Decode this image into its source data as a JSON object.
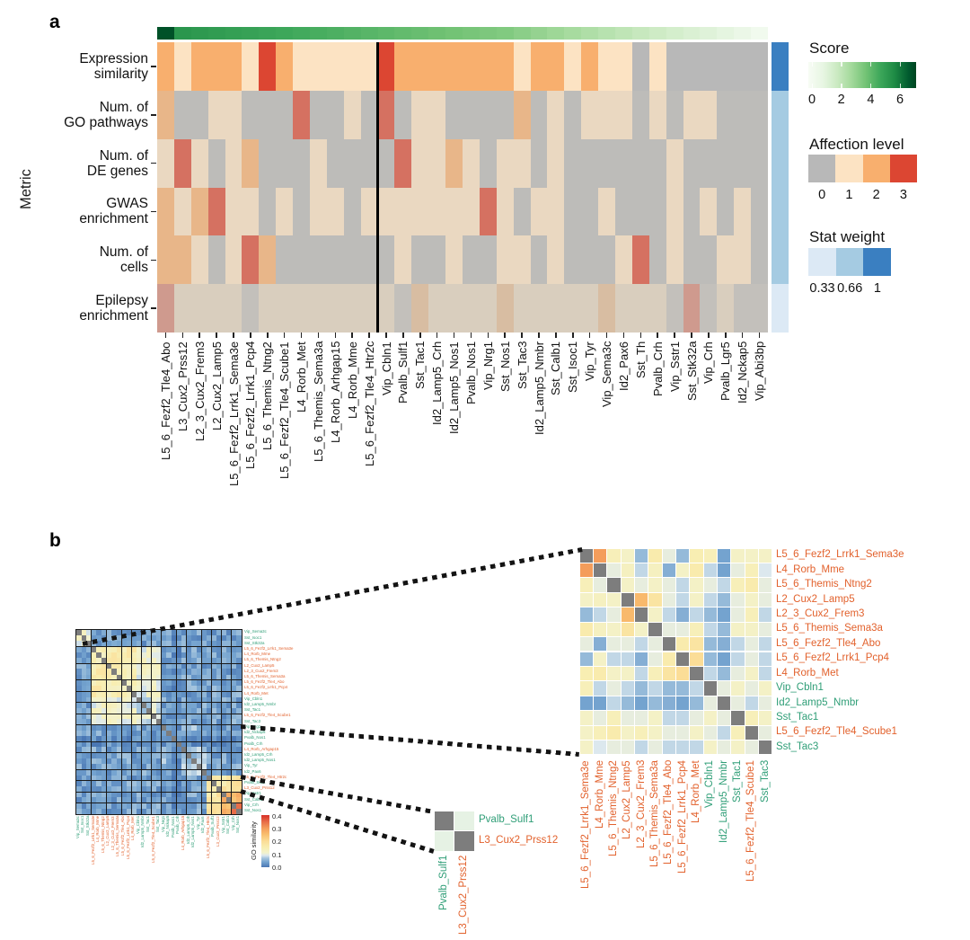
{
  "panel_a": {
    "label": "a"
  },
  "panel_b": {
    "label": "b"
  },
  "group_colors": {
    "exc": "#e2612c",
    "inh": "#2f9e77"
  },
  "chart_data": [
    {
      "id": "panel_a_metric_heatmap",
      "type": "heatmap",
      "ylabel": "Metric",
      "x_categories": [
        "L5_6_Fezf2_Tle4_Abo",
        "L3_Cux2_Prss12",
        "L2_3_Cux2_Frem3",
        "L2_Cux2_Lamp5",
        "L5_6_Fezf2_Lrrk1_Sema3e",
        "L5_6_Fezf2_Lrrk1_Pcp4",
        "L5_6_Themis_Ntng2",
        "L5_6_Fezf2_Tle4_Scube1",
        "L4_Rorb_Met",
        "L5_6_Themis_Sema3a",
        "L4_Rorb_Arhgap15",
        "L4_Rorb_Mme",
        "L5_6_Fezf2_Tle4_Htr2c",
        "Vip_Cbln1",
        "Pvalb_Sulf1",
        "Sst_Tac1",
        "Id2_Lamp5_Crh",
        "Id2_Lamp5_Nos1",
        "Pvalb_Nos1",
        "Vip_Nrg1",
        "Sst_Nos1",
        "Sst_Tac3",
        "Id2_Lamp5_Nmbr",
        "Sst_Calb1",
        "Sst_Isoc1",
        "Vip_Tyr",
        "Vip_Sema3c",
        "Id2_Pax6",
        "Sst_Th",
        "Pvalb_Crh",
        "Vip_Sstr1",
        "Sst_Stk32a",
        "Vip_Crh",
        "Pvalb_Lgr5",
        "Id2_Nckap5",
        "Vip_Abi3bp"
      ],
      "y_categories": [
        "Expression similarity",
        "Num. of GO pathways",
        "Num. of DE genes",
        "GWAS enrichment",
        "Num. of cells",
        "Epilepsy enrichment"
      ],
      "y_categories_lines": [
        [
          "Expression",
          "similarity"
        ],
        [
          "Num. of",
          "GO pathways"
        ],
        [
          "Num. of",
          "DE genes"
        ],
        [
          "GWAS",
          "enrichment"
        ],
        [
          "Num. of",
          "cells"
        ],
        [
          "Epilepsy",
          "enrichment"
        ]
      ],
      "affection_values": [
        [
          2,
          1,
          2,
          2,
          2,
          1,
          3,
          2,
          1,
          1,
          1,
          1,
          1,
          3,
          2,
          2,
          2,
          2,
          2,
          2,
          2,
          1,
          2,
          2,
          1,
          2,
          1,
          1,
          0,
          1,
          0,
          0,
          0,
          0,
          0,
          0
        ],
        [
          2,
          0,
          0,
          1,
          1,
          0,
          0,
          0,
          3,
          0,
          0,
          1,
          0,
          3,
          0,
          1,
          1,
          0,
          0,
          0,
          0,
          2,
          0,
          1,
          0,
          1,
          1,
          1,
          0,
          1,
          0,
          1,
          1,
          0,
          0,
          0
        ],
        [
          1,
          3,
          1,
          0,
          1,
          2,
          0,
          0,
          0,
          1,
          0,
          0,
          0,
          0,
          3,
          1,
          1,
          2,
          1,
          0,
          1,
          1,
          0,
          1,
          0,
          0,
          0,
          0,
          0,
          0,
          1,
          0,
          0,
          0,
          0,
          0
        ],
        [
          2,
          1,
          2,
          3,
          1,
          1,
          0,
          1,
          0,
          1,
          1,
          0,
          1,
          1,
          1,
          1,
          1,
          1,
          1,
          3,
          1,
          0,
          1,
          1,
          0,
          0,
          1,
          0,
          0,
          0,
          1,
          0,
          1,
          0,
          1,
          0
        ],
        [
          2,
          2,
          1,
          0,
          1,
          3,
          2,
          0,
          0,
          0,
          0,
          0,
          0,
          0,
          1,
          0,
          0,
          1,
          0,
          0,
          1,
          1,
          0,
          1,
          0,
          0,
          0,
          1,
          3,
          0,
          1,
          0,
          0,
          1,
          1,
          0
        ],
        [
          3,
          1,
          1,
          1,
          1,
          0,
          1,
          1,
          1,
          1,
          1,
          1,
          1,
          1,
          0,
          2,
          1,
          1,
          1,
          1,
          2,
          1,
          1,
          1,
          1,
          1,
          2,
          1,
          1,
          1,
          0,
          3,
          0,
          1,
          0,
          0
        ]
      ],
      "score_values": [
        7.2,
        5.6,
        5.5,
        5.4,
        5.3,
        5.2,
        5.1,
        5.0,
        4.9,
        4.8,
        4.7,
        4.6,
        4.5,
        4.4,
        4.3,
        4.2,
        4.1,
        4.0,
        3.9,
        3.8,
        3.7,
        3.5,
        3.3,
        3.1,
        2.9,
        2.7,
        2.5,
        2.3,
        2.1,
        1.9,
        1.7,
        1.5,
        1.3,
        1.1,
        0.8,
        0.4
      ],
      "row_stat_weights": [
        1,
        0.66,
        0.66,
        0.66,
        0.66,
        0.33
      ],
      "divider_after_index": 13,
      "fade_base_color": "#c8c4bc",
      "score_colormap_stops": [
        [
          0,
          "#f7fcf5"
        ],
        [
          1,
          "#e8f6e3"
        ],
        [
          2,
          "#cbeac2"
        ],
        [
          3,
          "#a3d99b"
        ],
        [
          4,
          "#73c375"
        ],
        [
          5,
          "#3da75a"
        ],
        [
          6,
          "#1e8b45"
        ],
        [
          7,
          "#00592e"
        ],
        [
          7.5,
          "#00441f"
        ]
      ],
      "legends": {
        "score": {
          "title": "Score",
          "ticks": [
            "0",
            "2",
            "4",
            "6"
          ],
          "range": [
            0,
            7.5
          ]
        },
        "affection": {
          "title": "Affection level",
          "ticks": [
            "0",
            "1",
            "2",
            "3"
          ],
          "colors": [
            "#b8b8b8",
            "#fce3c3",
            "#f8af6e",
            "#dc4632"
          ]
        },
        "stat_weight": {
          "title": "Stat weight",
          "ticks": [
            "0.33",
            "0.66",
            "1"
          ],
          "colors": [
            "#dce9f5",
            "#a5cbe2",
            "#3a7fc1"
          ]
        }
      }
    },
    {
      "id": "panel_b_go_similarity_overview",
      "type": "heatmap",
      "labels": [
        [
          "Vip_Sema3c",
          "inh"
        ],
        [
          "Sst_Isoc1",
          "inh"
        ],
        [
          "Sst_Stk32a",
          "inh"
        ],
        [
          "L5_6_Fezf2_Lrrk1_Sema3e",
          "exc"
        ],
        [
          "L4_Rorb_Mme",
          "exc"
        ],
        [
          "L5_6_Themis_Ntng2",
          "exc"
        ],
        [
          "L2_Cux2_Lamp5",
          "exc"
        ],
        [
          "L2_3_Cux2_Frem3",
          "exc"
        ],
        [
          "L5_6_Themis_Sema3a",
          "exc"
        ],
        [
          "L5_6_Fezf2_Tle4_Abo",
          "exc"
        ],
        [
          "L5_6_Fezf2_Lrrk1_Pcp4",
          "exc"
        ],
        [
          "L4_Rorb_Met",
          "exc"
        ],
        [
          "Vip_Cbln1",
          "inh"
        ],
        [
          "Id2_Lamp5_Nmbr",
          "inh"
        ],
        [
          "Sst_Tac1",
          "inh"
        ],
        [
          "L5_6_Fezf2_Tle4_Scube1",
          "exc"
        ],
        [
          "Sst_Tac3",
          "inh"
        ],
        [
          "Vip_Nrg1",
          "inh"
        ],
        [
          "Id2_Nckap5",
          "inh"
        ],
        [
          "Pvalb_Nos1",
          "inh"
        ],
        [
          "Pvalb_Crh",
          "inh"
        ],
        [
          "L4_Rorb_Arhgap15",
          "exc"
        ],
        [
          "Id2_Lamp5_Crh",
          "inh"
        ],
        [
          "Id2_Lamp5_Nos1",
          "inh"
        ],
        [
          "Vip_Tyr",
          "inh"
        ],
        [
          "Id2_Pax6",
          "inh"
        ],
        [
          "L5_6_Fezf2_Tle4_Htr2c",
          "exc"
        ],
        [
          "Pvalb_Sulf1",
          "inh"
        ],
        [
          "L3_Cux2_Prss12",
          "exc"
        ],
        [
          "Vip_Sstr1",
          "inh"
        ],
        [
          "Sst_Calb1",
          "inh"
        ],
        [
          "Vip_Crh",
          "inh"
        ],
        [
          "Sst_Nos1",
          "inh"
        ]
      ],
      "value_scale": {
        "min": 0,
        "max": 0.4,
        "label": "GO similarity",
        "ticks": [
          "0.4",
          "0.3",
          "0.2",
          "0.1",
          "0.0"
        ]
      },
      "base_value": 0.04,
      "blocks": [
        {
          "rows": [
            1,
            3
          ],
          "cols": [
            1,
            3
          ],
          "v": 0.11
        },
        {
          "rows": [
            4,
            17
          ],
          "cols": [
            4,
            17
          ],
          "v": 0.11
        },
        {
          "rows": [
            4,
            12
          ],
          "cols": [
            4,
            12
          ],
          "v": 0.15
        },
        {
          "rows": [
            13,
            17
          ],
          "cols": [
            13,
            17
          ],
          "v": 0.09
        },
        {
          "rows": [
            18,
            26
          ],
          "cols": [
            18,
            26
          ],
          "v": 0.06
        },
        {
          "rows": [
            27,
            33
          ],
          "cols": [
            27,
            33
          ],
          "v": 0.17
        },
        {
          "rows": [
            30,
            33
          ],
          "cols": [
            30,
            33
          ],
          "v": 0.26
        },
        {
          "rows": [
            32,
            33
          ],
          "cols": [
            32,
            33
          ],
          "v": 0.32
        },
        {
          "rows": [
            20,
            21
          ],
          "cols": [
            1,
            33
          ],
          "v": 0.02
        }
      ],
      "cluster_boundaries_after": [
        3,
        6,
        9,
        11,
        13,
        15,
        17,
        20,
        22,
        25,
        27,
        29,
        31
      ],
      "diag_color": "#7d7d7d",
      "colormap_stops": [
        [
          0,
          "#4a77b4"
        ],
        [
          0.04,
          "#74a3cf"
        ],
        [
          0.07,
          "#a6c5de"
        ],
        [
          0.09,
          "#dce8ee"
        ],
        [
          0.11,
          "#f2f2cd"
        ],
        [
          0.15,
          "#f8eeb2"
        ],
        [
          0.2,
          "#fbdd97"
        ],
        [
          0.25,
          "#f9c070"
        ],
        [
          0.3,
          "#f49d5b"
        ],
        [
          0.35,
          "#e76b47"
        ],
        [
          0.4,
          "#d73027"
        ]
      ]
    },
    {
      "id": "panel_b_inset_zoom_14",
      "type": "heatmap",
      "labels": [
        [
          "L5_6_Fezf2_Lrrk1_Sema3e",
          "exc"
        ],
        [
          "L4_Rorb_Mme",
          "exc"
        ],
        [
          "L5_6_Themis_Ntng2",
          "exc"
        ],
        [
          "L2_Cux2_Lamp5",
          "exc"
        ],
        [
          "L2_3_Cux2_Frem3",
          "exc"
        ],
        [
          "L5_6_Themis_Sema3a",
          "exc"
        ],
        [
          "L5_6_Fezf2_Tle4_Abo",
          "exc"
        ],
        [
          "L5_6_Fezf2_Lrrk1_Pcp4",
          "exc"
        ],
        [
          "L4_Rorb_Met",
          "exc"
        ],
        [
          "Vip_Cbln1",
          "inh"
        ],
        [
          "Id2_Lamp5_Nmbr",
          "inh"
        ],
        [
          "Sst_Tac1",
          "inh"
        ],
        [
          "L5_6_Fezf2_Tle4_Scube1",
          "exc"
        ],
        [
          "Sst_Tac3",
          "inh"
        ]
      ],
      "values": [
        [
          null,
          0.3,
          0.14,
          0.12,
          0.06,
          0.16,
          0.1,
          0.06,
          0.15,
          0.14,
          0.04,
          0.12,
          0.12,
          0.12
        ],
        [
          0.3,
          null,
          0.1,
          0.13,
          0.08,
          0.13,
          0.05,
          0.12,
          0.16,
          0.08,
          0.04,
          0.1,
          0.14,
          0.09
        ],
        [
          0.14,
          0.1,
          null,
          0.12,
          0.1,
          0.12,
          0.1,
          0.08,
          0.12,
          0.1,
          0.08,
          0.14,
          0.16,
          0.1
        ],
        [
          0.12,
          0.13,
          0.12,
          null,
          0.26,
          0.18,
          0.1,
          0.08,
          0.12,
          0.08,
          0.06,
          0.1,
          0.12,
          0.1
        ],
        [
          0.06,
          0.08,
          0.1,
          0.26,
          null,
          0.12,
          0.08,
          0.05,
          0.08,
          0.06,
          0.04,
          0.1,
          0.14,
          0.08
        ],
        [
          0.16,
          0.13,
          0.12,
          0.18,
          0.12,
          null,
          0.1,
          0.1,
          0.14,
          0.08,
          0.06,
          0.12,
          0.12,
          0.1
        ],
        [
          0.1,
          0.05,
          0.1,
          0.1,
          0.08,
          0.1,
          null,
          0.16,
          0.18,
          0.06,
          0.05,
          0.08,
          0.1,
          0.08
        ],
        [
          0.06,
          0.12,
          0.08,
          0.08,
          0.05,
          0.1,
          0.16,
          null,
          0.2,
          0.06,
          0.04,
          0.08,
          0.1,
          0.08
        ],
        [
          0.15,
          0.16,
          0.12,
          0.12,
          0.08,
          0.14,
          0.18,
          0.2,
          null,
          0.08,
          0.06,
          0.1,
          0.12,
          0.08
        ],
        [
          0.14,
          0.08,
          0.1,
          0.08,
          0.06,
          0.08,
          0.06,
          0.06,
          0.08,
          null,
          0.1,
          0.12,
          0.1,
          0.12
        ],
        [
          0.04,
          0.04,
          0.08,
          0.06,
          0.04,
          0.06,
          0.05,
          0.04,
          0.06,
          0.1,
          null,
          0.1,
          0.08,
          0.1
        ],
        [
          0.12,
          0.1,
          0.14,
          0.1,
          0.1,
          0.12,
          0.08,
          0.08,
          0.1,
          0.12,
          0.1,
          null,
          0.14,
          0.12
        ],
        [
          0.12,
          0.14,
          0.16,
          0.12,
          0.14,
          0.12,
          0.1,
          0.1,
          0.12,
          0.1,
          0.08,
          0.14,
          null,
          0.1
        ],
        [
          0.12,
          0.09,
          0.1,
          0.1,
          0.08,
          0.1,
          0.08,
          0.08,
          0.08,
          0.12,
          0.1,
          0.12,
          0.1,
          null
        ]
      ],
      "diag_color": "#7d7d7d"
    },
    {
      "id": "panel_b_inset_zoom_2",
      "type": "heatmap",
      "labels": [
        [
          "Pvalb_Sulf1",
          "inh"
        ],
        [
          "L3_Cux2_Prss12",
          "exc"
        ]
      ],
      "offdiag_color": "#e6f2e4",
      "diag_color": "#7d7d7d"
    }
  ]
}
